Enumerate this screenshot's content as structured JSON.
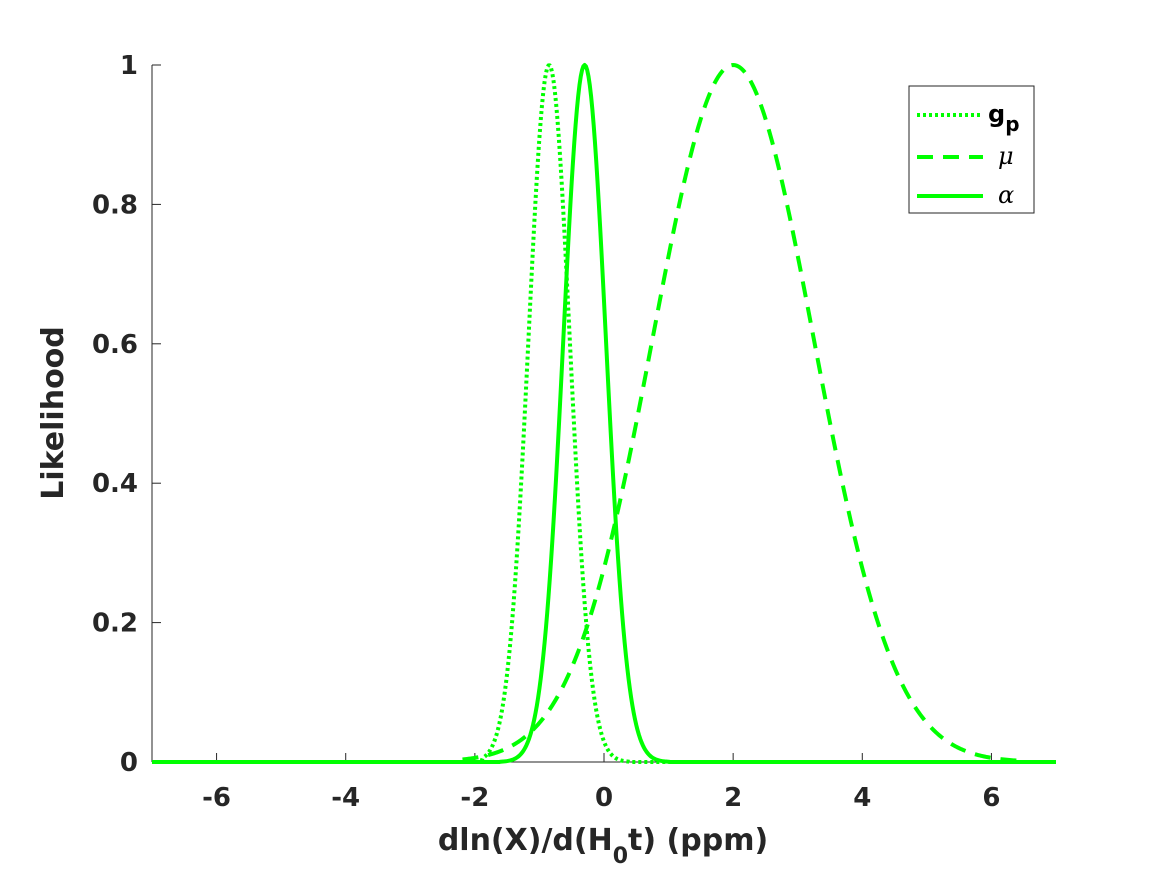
{
  "chart_data": {
    "type": "line",
    "title": "",
    "xlabel": {
      "main": "dln(X)/d(H",
      "sub": "0",
      "tail": "t) (ppm)"
    },
    "ylabel": "Likelihood",
    "xlim": [
      -7,
      7
    ],
    "ylim": [
      0,
      1
    ],
    "xticks": [
      -6,
      -4,
      -2,
      0,
      2,
      4,
      6
    ],
    "xtick_labels": [
      "-6",
      "-4",
      "-2",
      "0",
      "2",
      "4",
      "6"
    ],
    "yticks": [
      0,
      0.2,
      0.4,
      0.6,
      0.8,
      1
    ],
    "ytick_labels": [
      "0",
      "0.2",
      "0.4",
      "0.6",
      "0.8",
      "1"
    ],
    "grid": false,
    "legend_position": "top-right",
    "series": [
      {
        "name": "g",
        "name_sub": "p",
        "style": "dotted",
        "color": "#00ff00",
        "peak_x": -0.85,
        "sigma": 0.32,
        "support": [
          -1.9,
          0.4
        ]
      },
      {
        "name": "μ",
        "style": "dashed",
        "color": "#00ff00",
        "peak_x": 2.0,
        "sigma": 1.25,
        "support": [
          -2.2,
          6.5
        ]
      },
      {
        "name": "α",
        "style": "solid",
        "color": "#00ff00",
        "peak_x": -0.3,
        "sigma": 0.33,
        "support": [
          -1.6,
          1.0
        ]
      }
    ]
  }
}
